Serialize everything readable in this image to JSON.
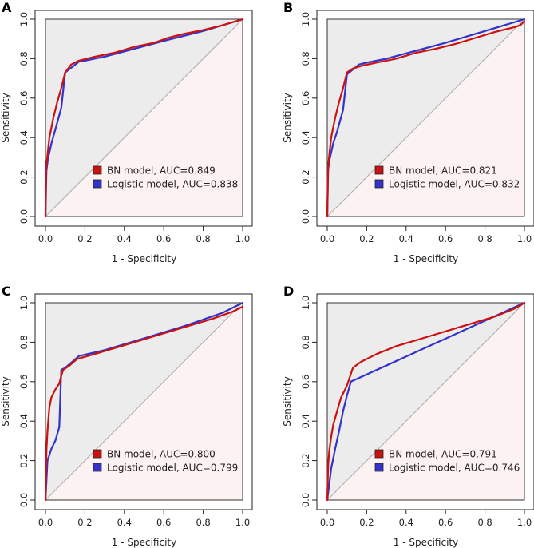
{
  "figure": {
    "colors": {
      "bn": "#cc1111",
      "logistic": "#3333cc",
      "diagonal": "#aaaaaa",
      "upper_fill": "#ececec",
      "lower_fill": "#fdf2f2"
    }
  },
  "chart_data": [
    {
      "type": "line",
      "panel": "A",
      "xlabel": "1 - Specificity",
      "ylabel": "Sensitivity",
      "xlim": [
        0,
        1
      ],
      "ylim": [
        0,
        1
      ],
      "x_ticks": [
        "0.0",
        "0.2",
        "0.4",
        "0.6",
        "0.8",
        "1.0"
      ],
      "y_ticks": [
        "0.0",
        "0.2",
        "0.4",
        "0.6",
        "0.8",
        "1.0"
      ],
      "series": [
        {
          "name": "BN model, AUC=0.849",
          "key": "bn",
          "x": [
            0,
            0.003,
            0.01,
            0.02,
            0.04,
            0.06,
            0.08,
            0.1,
            0.13,
            0.17,
            0.25,
            0.35,
            0.45,
            0.55,
            0.62,
            0.7,
            0.8,
            0.9,
            1.0
          ],
          "y": [
            0,
            0.24,
            0.31,
            0.4,
            0.5,
            0.58,
            0.65,
            0.73,
            0.77,
            0.79,
            0.81,
            0.83,
            0.86,
            0.88,
            0.905,
            0.925,
            0.945,
            0.97,
            1.0
          ]
        },
        {
          "name": "Logistic model, AUC=0.838",
          "key": "logistic",
          "x": [
            0,
            0.005,
            0.012,
            0.03,
            0.05,
            0.08,
            0.1,
            0.17,
            0.2,
            0.3,
            0.45,
            0.6,
            0.8,
            1.0
          ],
          "y": [
            0,
            0.23,
            0.29,
            0.37,
            0.44,
            0.55,
            0.73,
            0.785,
            0.79,
            0.81,
            0.85,
            0.89,
            0.94,
            1.0
          ]
        }
      ]
    },
    {
      "type": "line",
      "panel": "B",
      "xlabel": "1 - Specificity",
      "ylabel": "Sensitivity",
      "xlim": [
        0,
        1
      ],
      "ylim": [
        0,
        1
      ],
      "x_ticks": [
        "0.0",
        "0.2",
        "0.4",
        "0.6",
        "0.8",
        "1.0"
      ],
      "y_ticks": [
        "0.0",
        "0.2",
        "0.4",
        "0.6",
        "0.8",
        "1.0"
      ],
      "series": [
        {
          "name": "BN model, AUC=0.821",
          "key": "bn",
          "x": [
            0,
            0.004,
            0.01,
            0.02,
            0.04,
            0.06,
            0.08,
            0.1,
            0.13,
            0.18,
            0.25,
            0.35,
            0.45,
            0.55,
            0.65,
            0.75,
            0.85,
            0.95,
            0.98,
            1.0
          ],
          "y": [
            0,
            0.25,
            0.31,
            0.4,
            0.5,
            0.58,
            0.65,
            0.73,
            0.75,
            0.765,
            0.78,
            0.8,
            0.83,
            0.85,
            0.875,
            0.905,
            0.935,
            0.96,
            0.97,
            0.99
          ]
        },
        {
          "name": "Logistic model, AUC=0.832",
          "key": "logistic",
          "x": [
            0,
            0.005,
            0.012,
            0.03,
            0.05,
            0.08,
            0.1,
            0.16,
            0.2,
            0.3,
            0.45,
            0.6,
            0.8,
            1.0
          ],
          "y": [
            0,
            0.24,
            0.29,
            0.37,
            0.43,
            0.54,
            0.72,
            0.77,
            0.78,
            0.8,
            0.84,
            0.88,
            0.94,
            1.0
          ]
        }
      ]
    },
    {
      "type": "line",
      "panel": "C",
      "xlabel": "1 - Specificity",
      "ylabel": "Sensitivity",
      "xlim": [
        0,
        1
      ],
      "ylim": [
        0,
        1
      ],
      "x_ticks": [
        "0.0",
        "0.2",
        "0.4",
        "0.6",
        "0.8",
        "1.0"
      ],
      "y_ticks": [
        "0.0",
        "0.2",
        "0.4",
        "0.6",
        "0.8",
        "1.0"
      ],
      "series": [
        {
          "name": "BN model, AUC=0.800",
          "key": "bn",
          "x": [
            0,
            0.005,
            0.01,
            0.02,
            0.03,
            0.05,
            0.07,
            0.08,
            0.09,
            0.12,
            0.16,
            0.25,
            0.35,
            0.45,
            0.55,
            0.65,
            0.75,
            0.85,
            0.95,
            1.0
          ],
          "y": [
            0,
            0.25,
            0.35,
            0.47,
            0.52,
            0.56,
            0.59,
            0.63,
            0.66,
            0.68,
            0.715,
            0.74,
            0.77,
            0.8,
            0.83,
            0.86,
            0.89,
            0.92,
            0.955,
            0.98
          ]
        },
        {
          "name": "Logistic model, AUC=0.799",
          "key": "logistic",
          "x": [
            0,
            0.01,
            0.03,
            0.05,
            0.07,
            0.08,
            0.1,
            0.17,
            0.3,
            0.5,
            0.7,
            0.9,
            1.0
          ],
          "y": [
            0,
            0.2,
            0.26,
            0.3,
            0.37,
            0.66,
            0.67,
            0.73,
            0.76,
            0.82,
            0.88,
            0.95,
            1.0
          ]
        }
      ]
    },
    {
      "type": "line",
      "panel": "D",
      "xlabel": "1 - Specificity",
      "ylabel": "Sensitivity",
      "xlim": [
        0,
        1
      ],
      "ylim": [
        0,
        1
      ],
      "x_ticks": [
        "0.0",
        "0.2",
        "0.4",
        "0.6",
        "0.8",
        "1.0"
      ],
      "y_ticks": [
        "0.0",
        "0.2",
        "0.4",
        "0.6",
        "0.8",
        "1.0"
      ],
      "series": [
        {
          "name": "BN model, AUC=0.791",
          "key": "bn",
          "x": [
            0,
            0.005,
            0.01,
            0.02,
            0.03,
            0.05,
            0.07,
            0.1,
            0.13,
            0.17,
            0.25,
            0.35,
            0.45,
            0.55,
            0.65,
            0.75,
            0.85,
            0.95,
            1.0
          ],
          "y": [
            0,
            0.18,
            0.25,
            0.32,
            0.38,
            0.45,
            0.52,
            0.58,
            0.67,
            0.7,
            0.74,
            0.78,
            0.81,
            0.84,
            0.87,
            0.9,
            0.93,
            0.97,
            1.0
          ]
        },
        {
          "name": "Logistic model, AUC=0.746",
          "key": "logistic",
          "x": [
            0,
            0.01,
            0.02,
            0.04,
            0.06,
            0.08,
            0.1,
            0.12,
            1.0
          ],
          "y": [
            0,
            0.08,
            0.16,
            0.26,
            0.35,
            0.45,
            0.53,
            0.6,
            1.0
          ]
        }
      ]
    }
  ]
}
